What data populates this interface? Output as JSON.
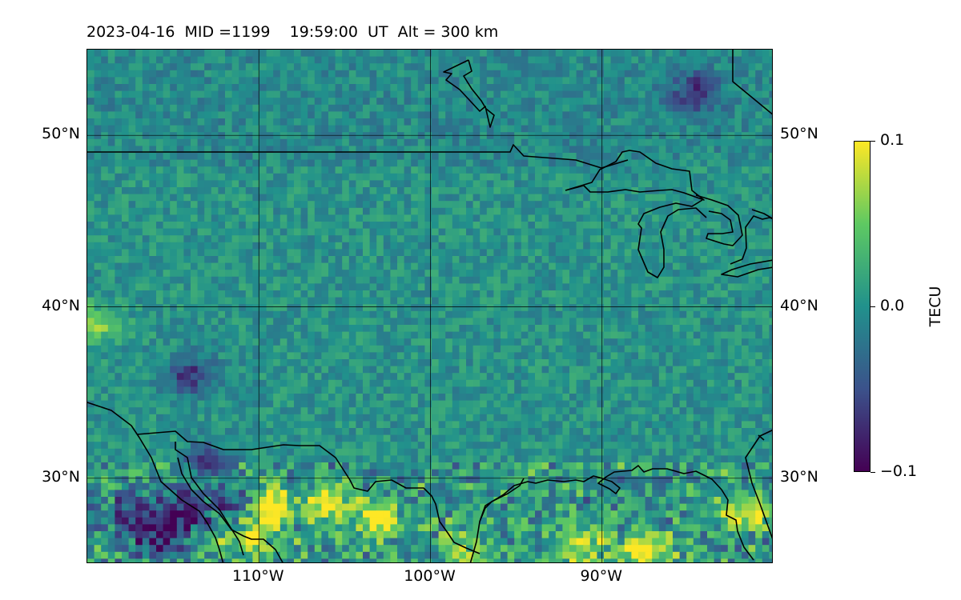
{
  "title": {
    "date": "2023-04-16",
    "mid": "MID =1199",
    "time": "19:59:00  UT",
    "alt": "Alt = 300 km"
  },
  "map": {
    "lon_range": [
      -120,
      -80
    ],
    "lat_range": [
      25,
      55
    ],
    "grid": true,
    "lat_ticks": [
      {
        "value": 50,
        "label": "50°N"
      },
      {
        "value": 40,
        "label": "40°N"
      },
      {
        "value": 30,
        "label": "30°N"
      }
    ],
    "lon_ticks": [
      {
        "value": -110,
        "label": "110°W"
      },
      {
        "value": -100,
        "label": "100°W"
      },
      {
        "value": -90,
        "label": "90°W"
      }
    ],
    "field": "TEC perturbation",
    "colormap": "viridis",
    "value_range": [
      -0.1,
      0.1
    ],
    "hotspots": [
      {
        "lon": -109.5,
        "lat": 28.5,
        "value": 0.1
      },
      {
        "lon": -106,
        "lat": 28.6,
        "value": 0.09
      },
      {
        "lon": -103,
        "lat": 27.5,
        "value": 0.1
      },
      {
        "lon": -110.5,
        "lat": 26.5,
        "value": 0.08
      },
      {
        "lon": -87.5,
        "lat": 25.7,
        "value": 0.1
      },
      {
        "lon": -91,
        "lat": 26,
        "value": 0.08
      },
      {
        "lon": -98,
        "lat": 25.8,
        "value": 0.07
      },
      {
        "lon": -81.5,
        "lat": 28.2,
        "value": 0.08
      },
      {
        "lon": -114.5,
        "lat": 28,
        "value": -0.1
      },
      {
        "lon": -117.5,
        "lat": 28,
        "value": -0.08
      },
      {
        "lon": -116,
        "lat": 26.5,
        "value": -0.09
      },
      {
        "lon": -111.5,
        "lat": 28.5,
        "value": -0.07
      },
      {
        "lon": -113,
        "lat": 31,
        "value": -0.06
      },
      {
        "lon": -114,
        "lat": 36,
        "value": -0.07
      },
      {
        "lon": -84.5,
        "lat": 52.5,
        "value": -0.07
      },
      {
        "lon": -119.5,
        "lat": 39,
        "value": 0.06
      }
    ]
  },
  "colorbar": {
    "label": "TECU",
    "ticks": [
      {
        "value": 0.1,
        "label": "0.1"
      },
      {
        "value": 0.0,
        "label": "0.0"
      },
      {
        "value": -0.1,
        "label": "−0.1"
      }
    ]
  }
}
